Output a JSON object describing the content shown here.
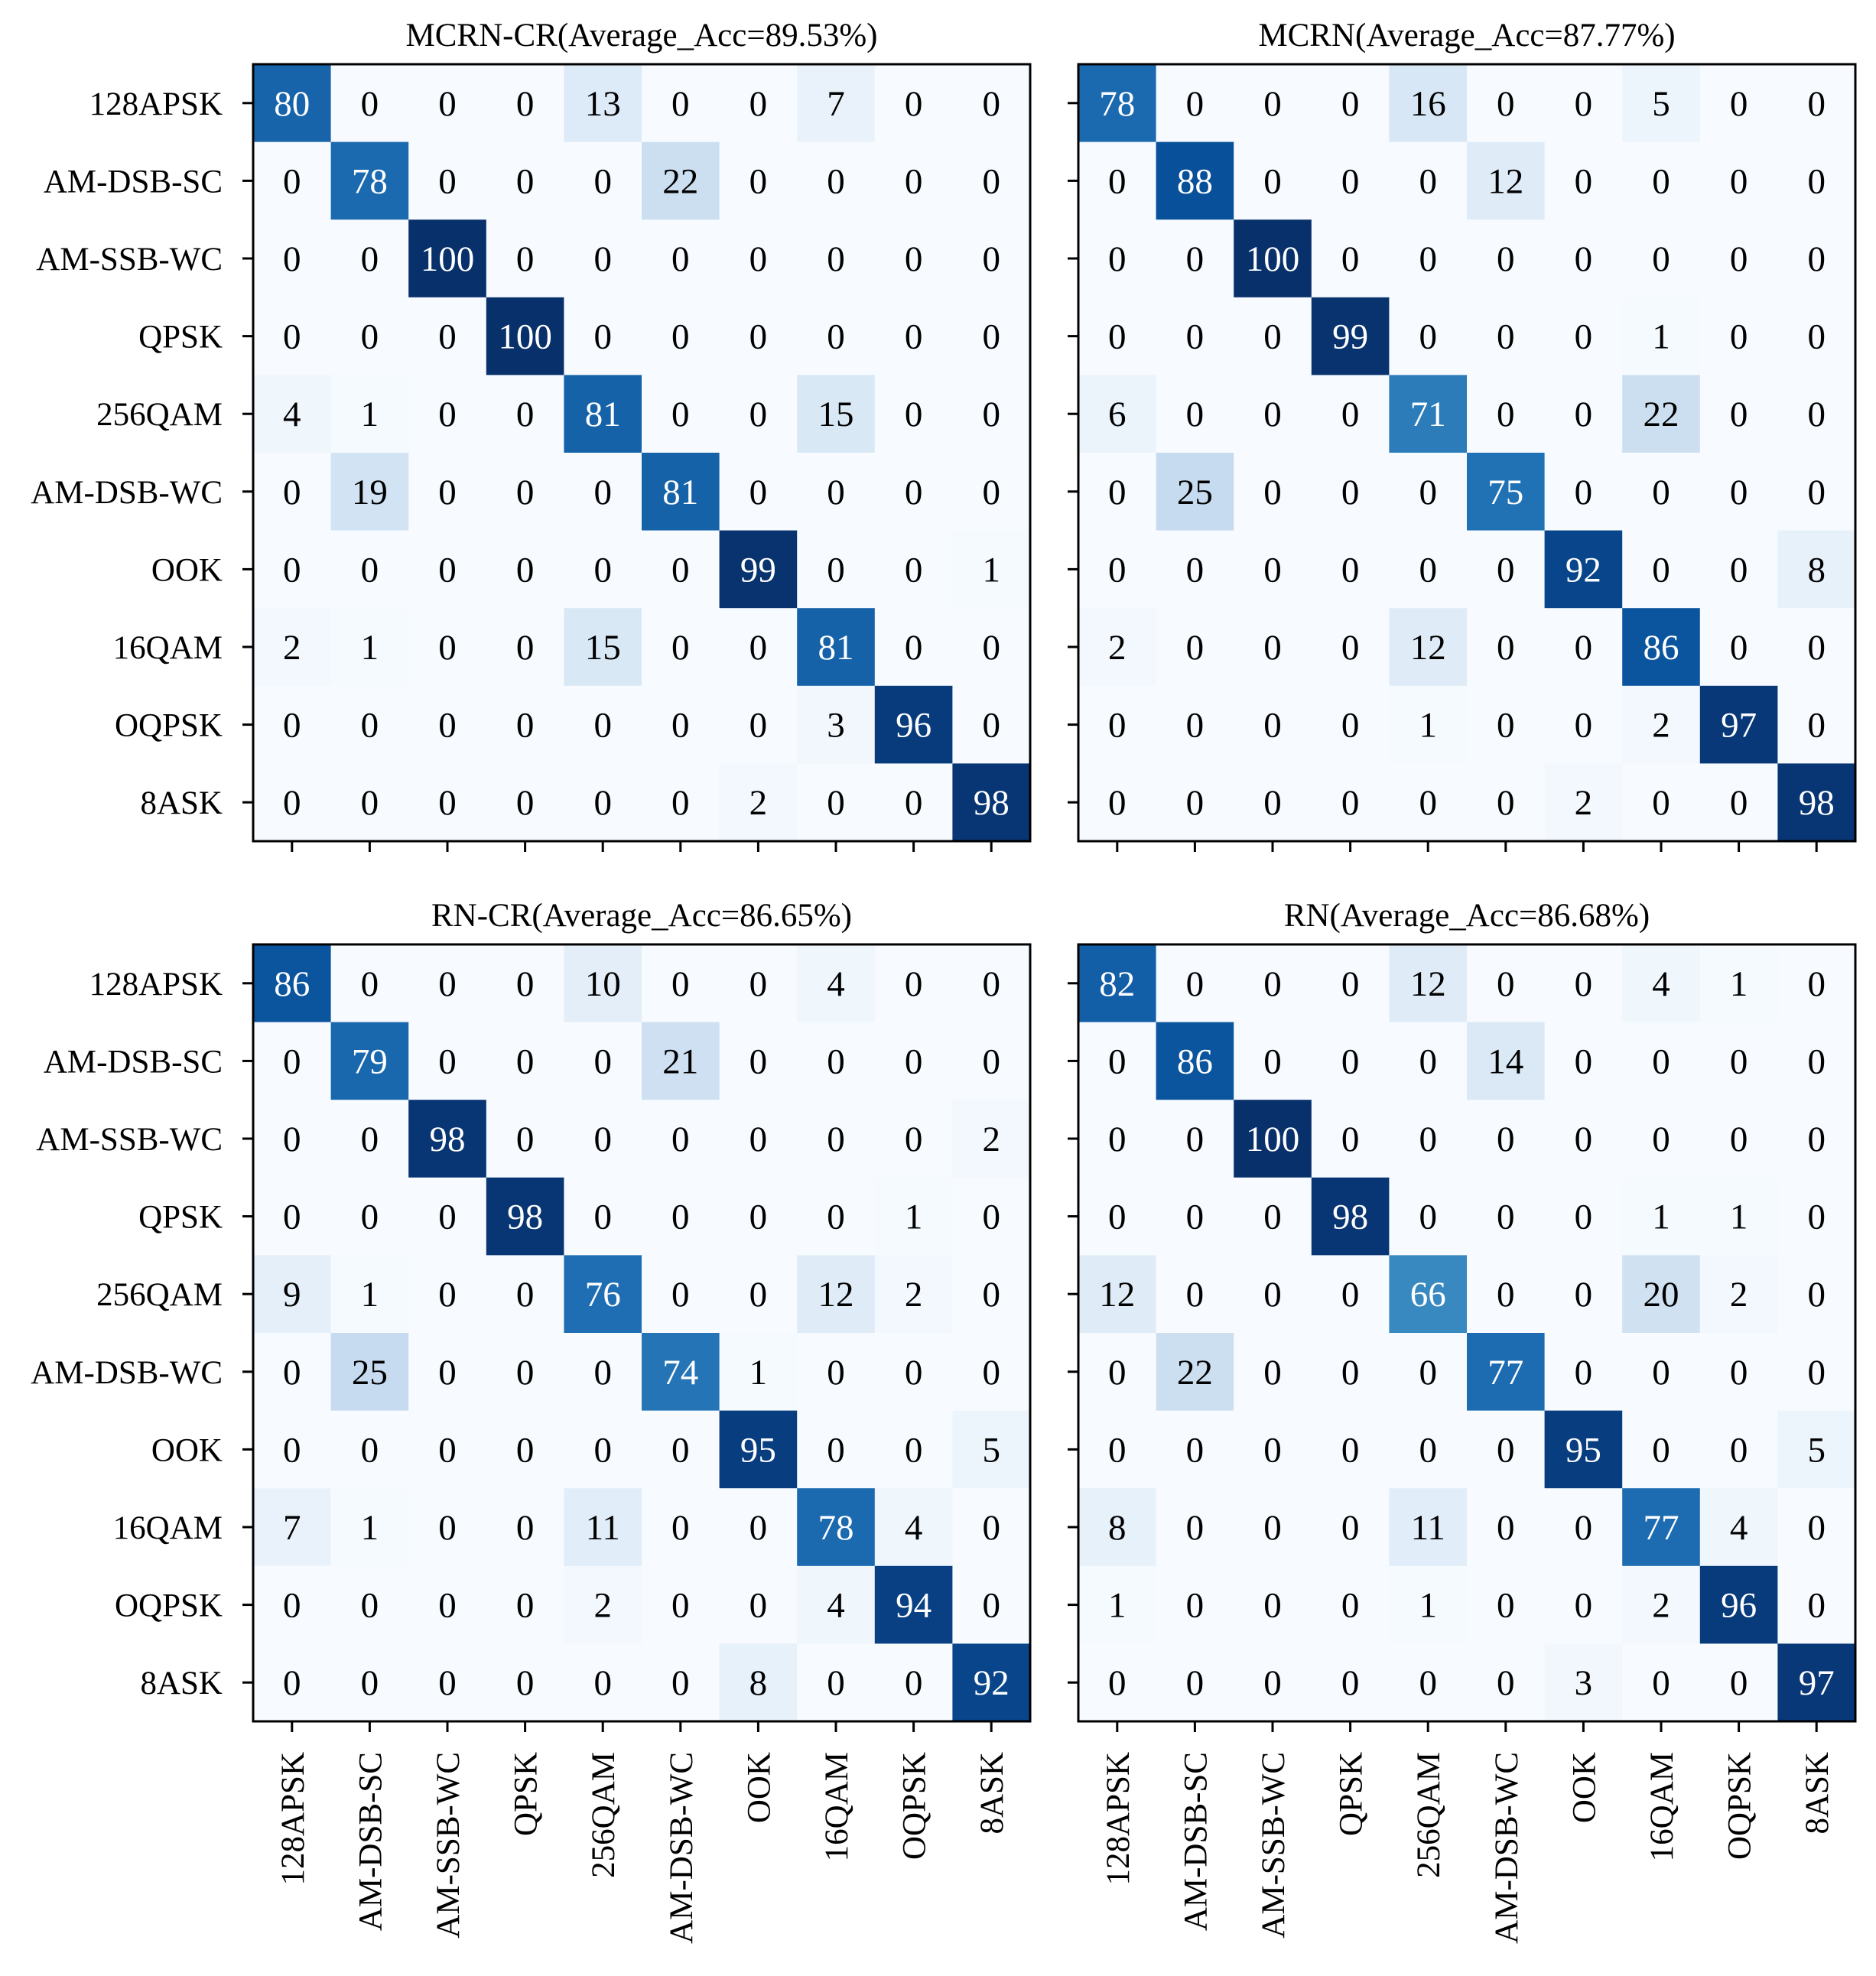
{
  "chart_data": [
    {
      "type": "heatmap",
      "title": "MCRN-CR(Average_Acc=89.53%)",
      "row_labels": [
        "128APSK",
        "AM-DSB-SC",
        "AM-SSB-WC",
        "QPSK",
        "256QAM",
        "AM-DSB-WC",
        "OOK",
        "16QAM",
        "OQPSK",
        "8ASK"
      ],
      "col_labels": [],
      "values": [
        [
          80,
          0,
          0,
          0,
          13,
          0,
          0,
          7,
          0,
          0
        ],
        [
          0,
          78,
          0,
          0,
          0,
          22,
          0,
          0,
          0,
          0
        ],
        [
          0,
          0,
          100,
          0,
          0,
          0,
          0,
          0,
          0,
          0
        ],
        [
          0,
          0,
          0,
          100,
          0,
          0,
          0,
          0,
          0,
          0
        ],
        [
          4,
          1,
          0,
          0,
          81,
          0,
          0,
          15,
          0,
          0
        ],
        [
          0,
          19,
          0,
          0,
          0,
          81,
          0,
          0,
          0,
          0
        ],
        [
          0,
          0,
          0,
          0,
          0,
          0,
          99,
          0,
          0,
          1
        ],
        [
          2,
          1,
          0,
          0,
          15,
          0,
          0,
          81,
          0,
          0
        ],
        [
          0,
          0,
          0,
          0,
          0,
          0,
          0,
          3,
          96,
          0
        ],
        [
          0,
          0,
          0,
          0,
          0,
          0,
          2,
          0,
          0,
          98
        ]
      ],
      "vmin": 0,
      "vmax": 100,
      "colormap": "Blues"
    },
    {
      "type": "heatmap",
      "title": "MCRN(Average_Acc=87.77%)",
      "row_labels": [],
      "col_labels": [],
      "values": [
        [
          78,
          0,
          0,
          0,
          16,
          0,
          0,
          5,
          0,
          0
        ],
        [
          0,
          88,
          0,
          0,
          0,
          12,
          0,
          0,
          0,
          0
        ],
        [
          0,
          0,
          100,
          0,
          0,
          0,
          0,
          0,
          0,
          0
        ],
        [
          0,
          0,
          0,
          99,
          0,
          0,
          0,
          1,
          0,
          0
        ],
        [
          6,
          0,
          0,
          0,
          71,
          0,
          0,
          22,
          0,
          0
        ],
        [
          0,
          25,
          0,
          0,
          0,
          75,
          0,
          0,
          0,
          0
        ],
        [
          0,
          0,
          0,
          0,
          0,
          0,
          92,
          0,
          0,
          8
        ],
        [
          2,
          0,
          0,
          0,
          12,
          0,
          0,
          86,
          0,
          0
        ],
        [
          0,
          0,
          0,
          0,
          1,
          0,
          0,
          2,
          97,
          0
        ],
        [
          0,
          0,
          0,
          0,
          0,
          0,
          2,
          0,
          0,
          98
        ]
      ],
      "vmin": 0,
      "vmax": 100,
      "colormap": "Blues"
    },
    {
      "type": "heatmap",
      "title": "RN-CR(Average_Acc=86.65%)",
      "row_labels": [
        "128APSK",
        "AM-DSB-SC",
        "AM-SSB-WC",
        "QPSK",
        "256QAM",
        "AM-DSB-WC",
        "OOK",
        "16QAM",
        "OQPSK",
        "8ASK"
      ],
      "col_labels": [
        "128APSK",
        "AM-DSB-SC",
        "AM-SSB-WC",
        "QPSK",
        "256QAM",
        "AM-DSB-WC",
        "OOK",
        "16QAM",
        "OQPSK",
        "8ASK"
      ],
      "values": [
        [
          86,
          0,
          0,
          0,
          10,
          0,
          0,
          4,
          0,
          0
        ],
        [
          0,
          79,
          0,
          0,
          0,
          21,
          0,
          0,
          0,
          0
        ],
        [
          0,
          0,
          98,
          0,
          0,
          0,
          0,
          0,
          0,
          2
        ],
        [
          0,
          0,
          0,
          98,
          0,
          0,
          0,
          0,
          1,
          0
        ],
        [
          9,
          1,
          0,
          0,
          76,
          0,
          0,
          12,
          2,
          0
        ],
        [
          0,
          25,
          0,
          0,
          0,
          74,
          1,
          0,
          0,
          0
        ],
        [
          0,
          0,
          0,
          0,
          0,
          0,
          95,
          0,
          0,
          5
        ],
        [
          7,
          1,
          0,
          0,
          11,
          0,
          0,
          78,
          4,
          0
        ],
        [
          0,
          0,
          0,
          0,
          2,
          0,
          0,
          4,
          94,
          0
        ],
        [
          0,
          0,
          0,
          0,
          0,
          0,
          8,
          0,
          0,
          92
        ]
      ],
      "vmin": 0,
      "vmax": 100,
      "colormap": "Blues"
    },
    {
      "type": "heatmap",
      "title": "RN(Average_Acc=86.68%)",
      "row_labels": [],
      "col_labels": [
        "128APSK",
        "AM-DSB-SC",
        "AM-SSB-WC",
        "QPSK",
        "256QAM",
        "AM-DSB-WC",
        "OOK",
        "16QAM",
        "OQPSK",
        "8ASK"
      ],
      "values": [
        [
          82,
          0,
          0,
          0,
          12,
          0,
          0,
          4,
          1,
          0
        ],
        [
          0,
          86,
          0,
          0,
          0,
          14,
          0,
          0,
          0,
          0
        ],
        [
          0,
          0,
          100,
          0,
          0,
          0,
          0,
          0,
          0,
          0
        ],
        [
          0,
          0,
          0,
          98,
          0,
          0,
          0,
          1,
          1,
          0
        ],
        [
          12,
          0,
          0,
          0,
          66,
          0,
          0,
          20,
          2,
          0
        ],
        [
          0,
          22,
          0,
          0,
          0,
          77,
          0,
          0,
          0,
          0
        ],
        [
          0,
          0,
          0,
          0,
          0,
          0,
          95,
          0,
          0,
          5
        ],
        [
          8,
          0,
          0,
          0,
          11,
          0,
          0,
          77,
          4,
          0
        ],
        [
          1,
          0,
          0,
          0,
          1,
          0,
          0,
          2,
          96,
          0
        ],
        [
          0,
          0,
          0,
          0,
          0,
          0,
          3,
          0,
          0,
          97
        ]
      ],
      "vmin": 0,
      "vmax": 100,
      "colormap": "Blues"
    }
  ]
}
